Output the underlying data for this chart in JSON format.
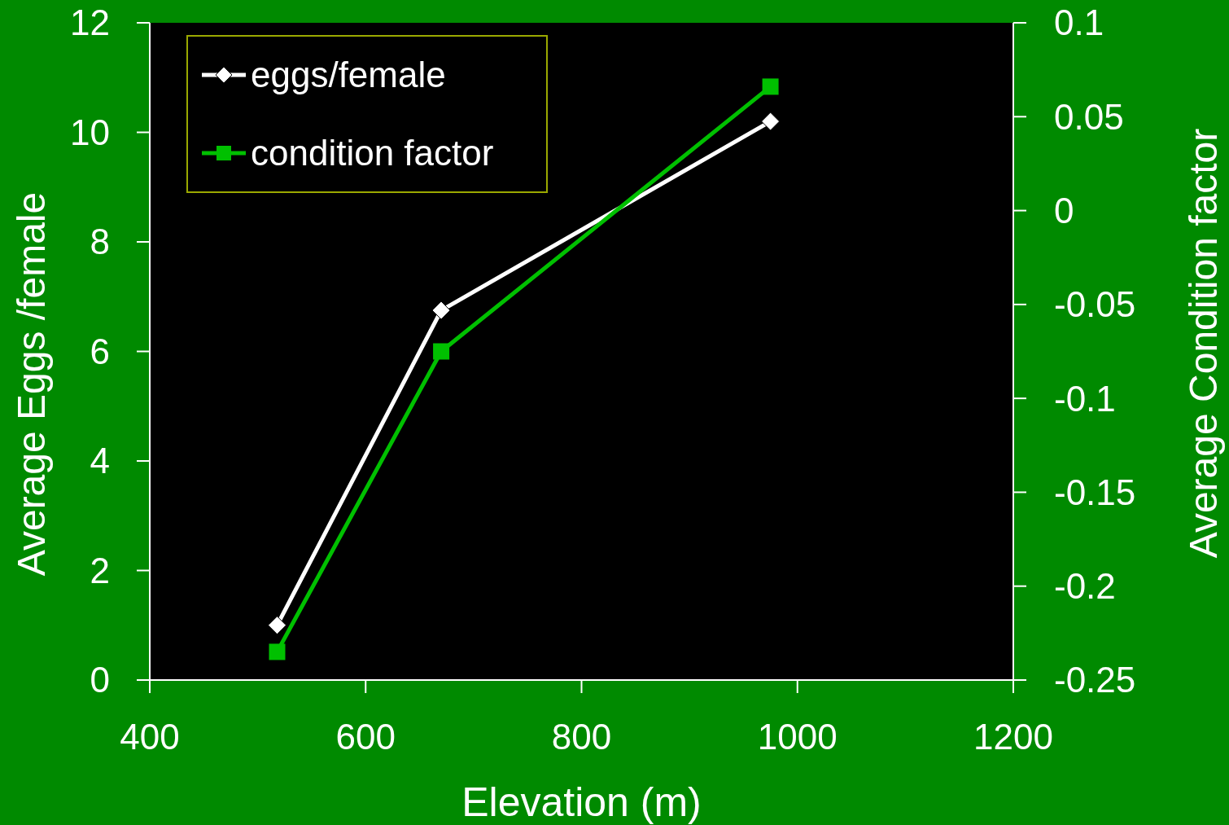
{
  "chart_data": {
    "type": "line",
    "xlabel": "Elevation (m)",
    "ylabel": "Average Eggs /female",
    "y2label": "Average Condition factor",
    "x": [
      518,
      670,
      975
    ],
    "series": [
      {
        "name": "eggs/female",
        "color": "#ffffff",
        "values": [
          1.0,
          6.75,
          10.2
        ],
        "marker": "diamond"
      },
      {
        "name": "condition factor",
        "color": "#00c000",
        "values": [
          -0.235,
          -0.075,
          0.066
        ],
        "marker": "square",
        "axis": "y2"
      }
    ],
    "xlim": [
      400,
      1200
    ],
    "xticks": [
      400,
      600,
      800,
      1000,
      1200
    ],
    "ylim": [
      0,
      12
    ],
    "yticks": [
      0,
      2,
      4,
      6,
      8,
      10,
      12
    ],
    "y2lim": [
      -0.25,
      0.1
    ],
    "y2ticks": [
      -0.25,
      -0.2,
      -0.15,
      -0.1,
      -0.05,
      0,
      0.05,
      0.1
    ],
    "legend": "top left",
    "grid": false,
    "line_style": "solid"
  }
}
